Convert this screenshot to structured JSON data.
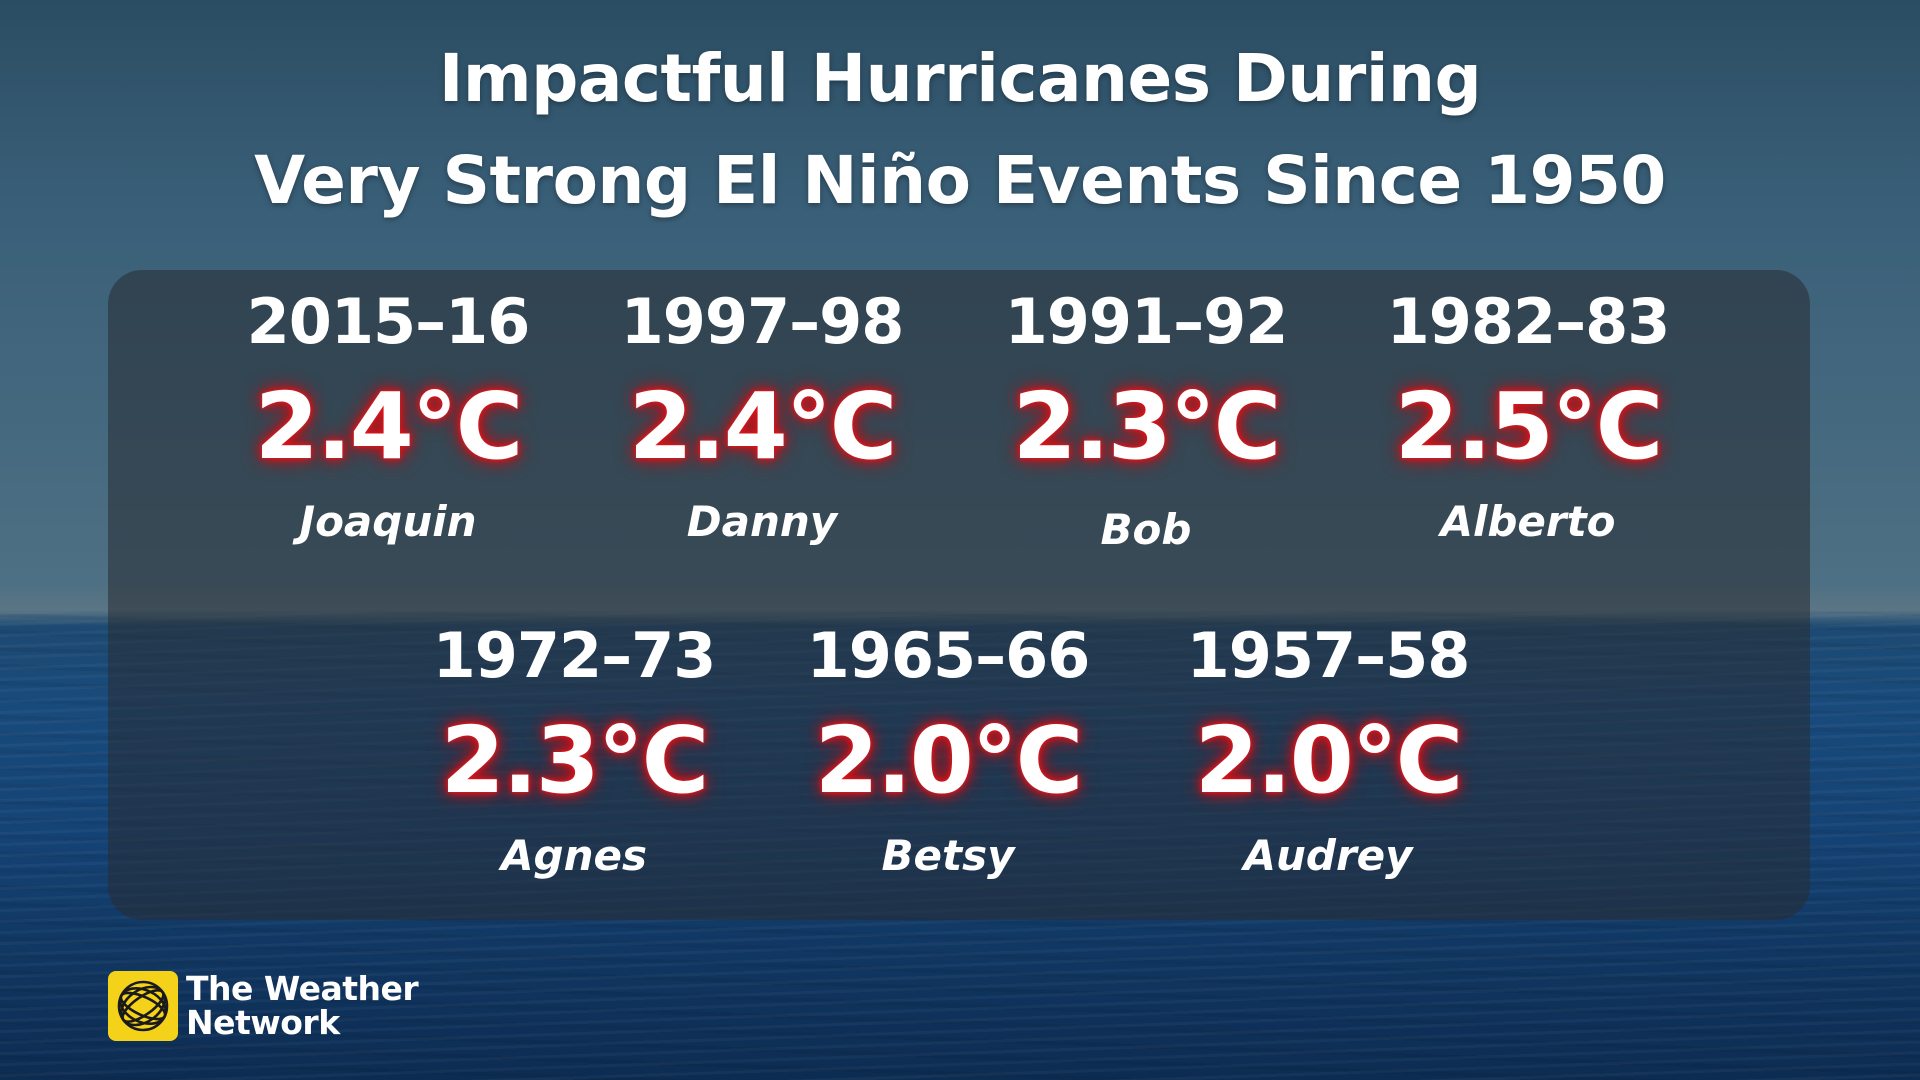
{
  "title": {
    "line1": "Impactful Hurricanes During",
    "line2": "Very Strong El Niño Events Since 1950"
  },
  "events": [
    {
      "years": "2015–16",
      "anomaly": "2.4°C",
      "storm": "Joaquin"
    },
    {
      "years": "1997–98",
      "anomaly": "2.4°C",
      "storm": "Danny"
    },
    {
      "years": "1991–92",
      "anomaly": "2.3°C",
      "storm": "Bob"
    },
    {
      "years": "1982–83",
      "anomaly": "2.5°C",
      "storm": "Alberto"
    },
    {
      "years": "1972–73",
      "anomaly": "2.3°C",
      "storm": "Agnes"
    },
    {
      "years": "1965–66",
      "anomaly": "2.0°C",
      "storm": "Betsy"
    },
    {
      "years": "1957–58",
      "anomaly": "2.0°C",
      "storm": "Audrey"
    }
  ],
  "logo": {
    "line1": "The Weather",
    "line2": "Network",
    "icon": "globe-icon",
    "color": "#f5d21a"
  },
  "colors": {
    "anomaly_glow": "#e0171c",
    "panel": "#282c32"
  }
}
